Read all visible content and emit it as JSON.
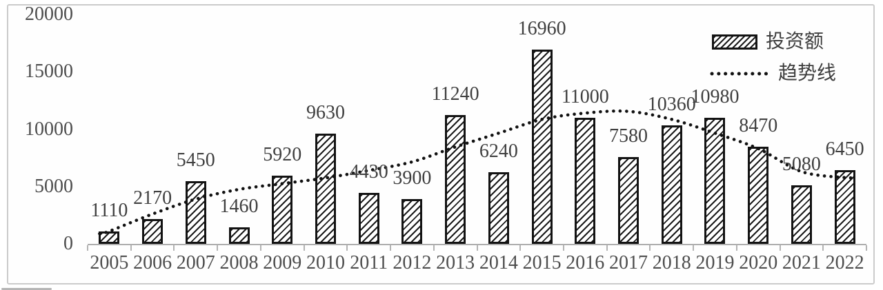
{
  "chart_data": {
    "type": "bar",
    "title": "",
    "categories": [
      "2005",
      "2006",
      "2007",
      "2008",
      "2009",
      "2010",
      "2011",
      "2012",
      "2013",
      "2014",
      "2015",
      "2016",
      "2017",
      "2018",
      "2019",
      "2020",
      "2021",
      "2022"
    ],
    "series": [
      {
        "name": "投资额",
        "type": "bar",
        "values": [
          1110,
          2170,
          5450,
          1460,
          5920,
          9630,
          4430,
          3900,
          11240,
          6240,
          16960,
          11000,
          7580,
          10360,
          10980,
          8470,
          5080,
          6450
        ]
      },
      {
        "name": "趋势线",
        "type": "dotted_trend_line",
        "values": [
          1100,
          2600,
          3900,
          4750,
          5250,
          5750,
          6400,
          7150,
          8450,
          9650,
          10850,
          11400,
          11550,
          10850,
          9650,
          8300,
          6300,
          5780
        ]
      }
    ],
    "data_labels_shown": true,
    "xlabel": "",
    "ylabel": "",
    "ylim": [
      0,
      20000
    ],
    "yticks": [
      0,
      5000,
      10000,
      15000,
      20000
    ],
    "grid": false,
    "legend_position": "top-right"
  },
  "legend": {
    "bar_label": "投资额",
    "trend_label": "趋势线"
  },
  "icons": {
    "bar_swatch": "hatched-rectangle-icon",
    "trend_swatch": "dotted-line-icon"
  },
  "colors": {
    "background": "#ffffff",
    "frame_border": "#cbcbcb",
    "bar_stroke": "#131313",
    "bar_hatch": "#1a1a1a",
    "trend_line": "#111111",
    "axis": "#aeaeae",
    "tick_label": "#4d4d4d",
    "data_label": "#3f3f3f"
  }
}
